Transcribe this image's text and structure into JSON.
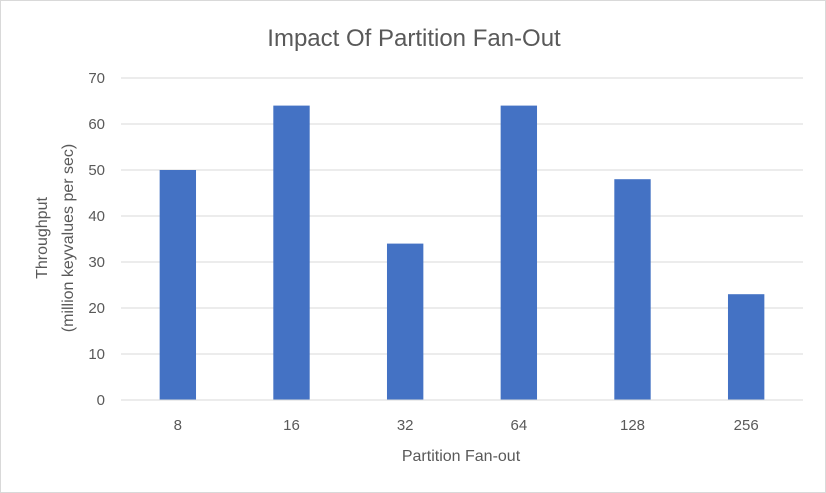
{
  "chart_data": {
    "type": "bar",
    "title": "Impact Of Partition Fan-Out",
    "xlabel": "Partition Fan-out",
    "ylabel_line1": "Throughput",
    "ylabel_line2": "(million keyvalues per sec)",
    "categories": [
      "8",
      "16",
      "32",
      "64",
      "128",
      "256"
    ],
    "values": [
      50,
      64,
      34,
      64,
      48,
      23
    ],
    "ylim": [
      0,
      70
    ],
    "yticks": [
      0,
      10,
      20,
      30,
      40,
      50,
      60,
      70
    ],
    "grid": true,
    "legend": "none",
    "bar_color": "#4472c4"
  }
}
